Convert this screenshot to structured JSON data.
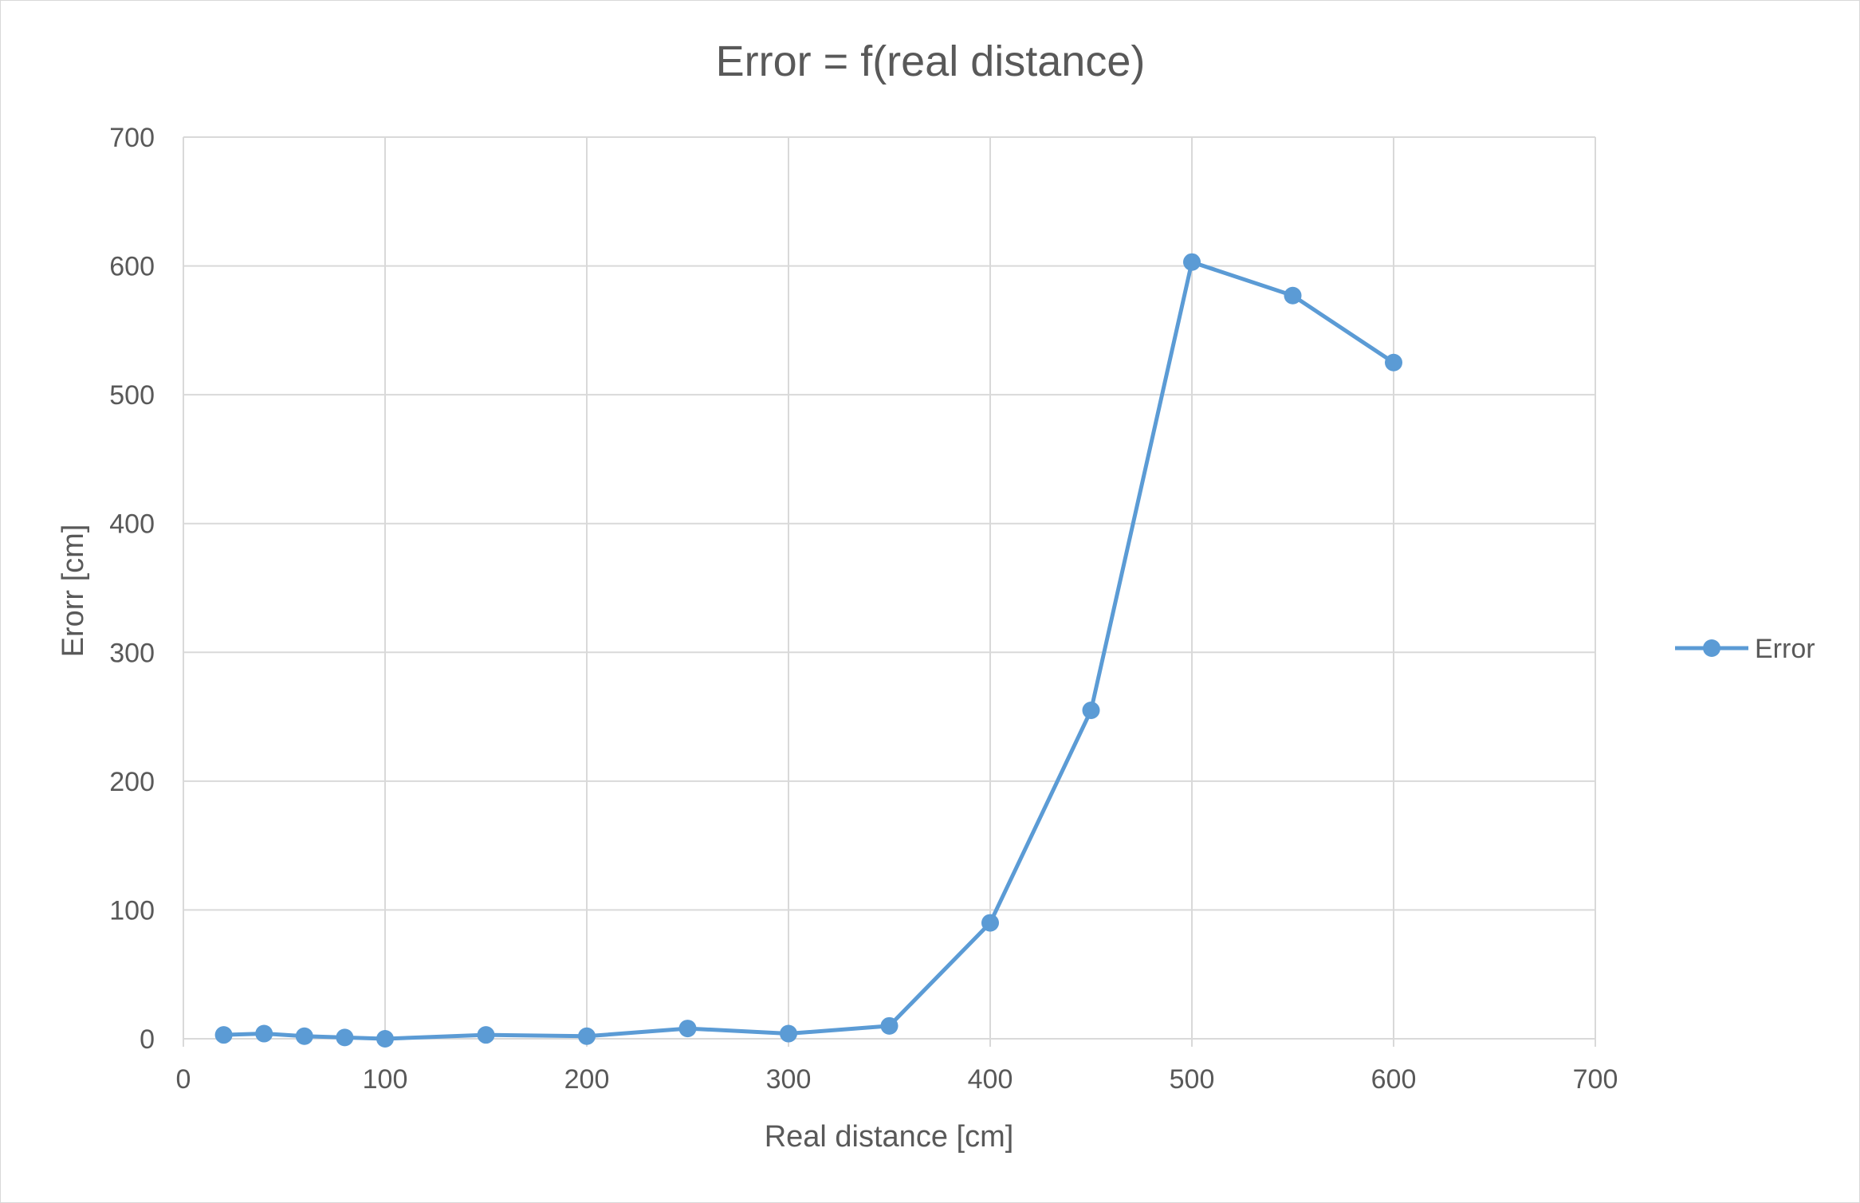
{
  "chart_data": {
    "type": "scatter",
    "title": "Error = f(real distance)",
    "xlabel": "Real distance [cm]",
    "ylabel": "Erorr [cm]",
    "xlim": [
      0,
      700
    ],
    "ylim": [
      0,
      700
    ],
    "x_ticks": [
      0,
      100,
      200,
      300,
      400,
      500,
      600,
      700
    ],
    "y_ticks": [
      0,
      100,
      200,
      300,
      400,
      500,
      600,
      700
    ],
    "grid": true,
    "legend_position": "right",
    "series": [
      {
        "name": "Error",
        "color": "#5b9bd5",
        "x": [
          20,
          40,
          60,
          80,
          100,
          150,
          200,
          250,
          300,
          350,
          400,
          450,
          500,
          550,
          600
        ],
        "y": [
          3,
          4,
          2,
          1,
          0,
          3,
          2,
          8,
          4,
          10,
          90,
          255,
          603,
          577,
          525
        ]
      }
    ]
  }
}
